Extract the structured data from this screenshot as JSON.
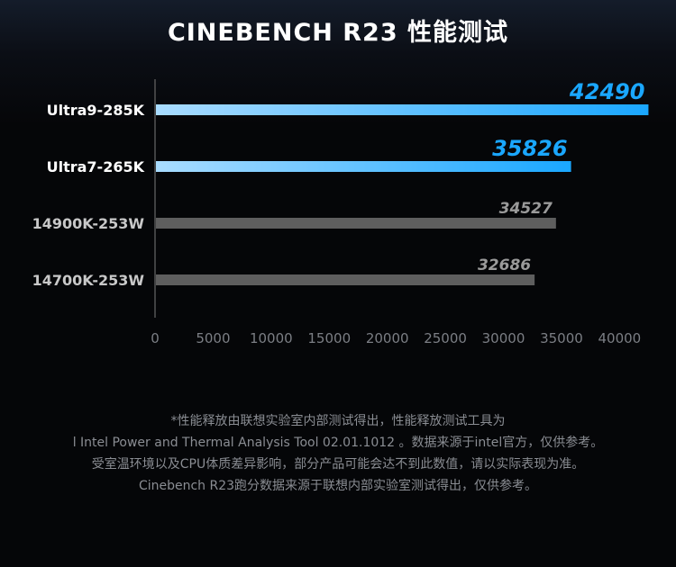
{
  "title": "CINEBENCH R23 性能测试",
  "chart_data": {
    "type": "bar",
    "orientation": "horizontal",
    "categories": [
      "Ultra9-285K",
      "Ultra7-265K",
      "14900K-253W",
      "14700K-253W"
    ],
    "values": [
      42490,
      35826,
      34527,
      32686
    ],
    "xlim": [
      0,
      43000
    ],
    "xticks": [
      0,
      5000,
      10000,
      15000,
      20000,
      25000,
      30000,
      35000,
      40000
    ],
    "highlight_color": "#1aa7ff",
    "highlight_start_color": "#a9dcff",
    "muted_color": "#5e5e5e",
    "highlight_label_color": "#1aa7ff",
    "muted_label_color": "#9a9a9a",
    "highlighted": [
      true,
      true,
      false,
      false
    ]
  },
  "notes": [
    "*性能释放由联想实验室内部测试得出，性能释放测试工具为",
    "l Intel Power and Thermal Analysis Tool 02.01.1012 。数据来源于intel官方，仅供参考。",
    "受室温环境以及CPU体质差异影响，部分产品可能会达不到此数值，请以实际表现为准。",
    "Cinebench R23跑分数据来源于联想内部实验室测试得出，仅供参考。"
  ]
}
